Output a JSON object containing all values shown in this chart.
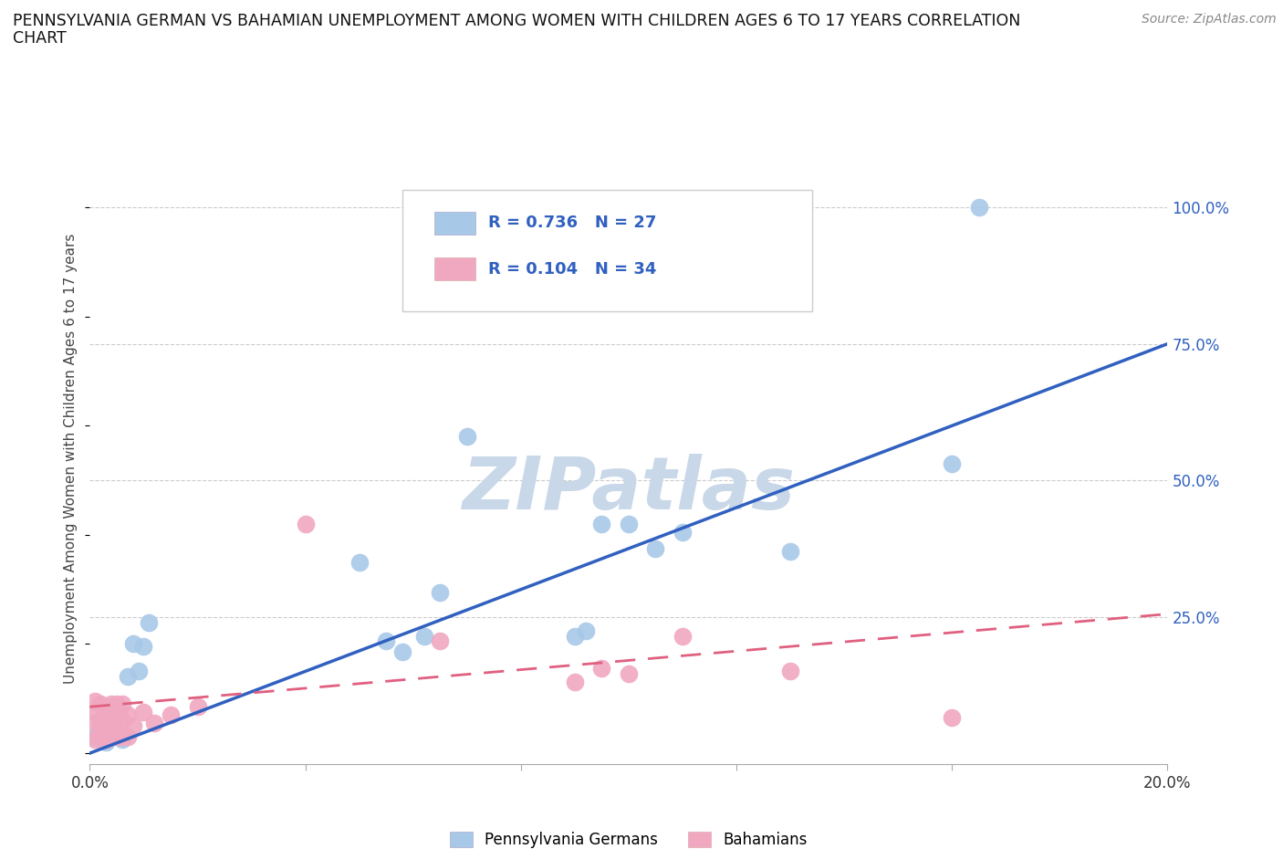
{
  "title_line1": "PENNSYLVANIA GERMAN VS BAHAMIAN UNEMPLOYMENT AMONG WOMEN WITH CHILDREN AGES 6 TO 17 YEARS CORRELATION",
  "title_line2": "CHART",
  "source_text": "Source: ZipAtlas.com",
  "ylabel": "Unemployment Among Women with Children Ages 6 to 17 years",
  "xlim": [
    0,
    0.2
  ],
  "ylim": [
    -0.02,
    1.1
  ],
  "yplot_min": 0.0,
  "yplot_max": 1.05,
  "ytick_positions": [
    0.25,
    0.5,
    0.75,
    1.0
  ],
  "ytick_labels": [
    "25.0%",
    "50.0%",
    "75.0%",
    "100.0%"
  ],
  "xtick_positions": [
    0,
    0.04,
    0.08,
    0.12,
    0.16,
    0.2
  ],
  "xtick_labels": [
    "0.0%",
    "",
    "",
    "",
    "",
    "20.0%"
  ],
  "grid_color": "#cccccc",
  "background_color": "#ffffff",
  "watermark_text": "ZIPatlas",
  "watermark_color": "#c8d8e8",
  "blue_scatter_color": "#a8c8e8",
  "pink_scatter_color": "#f0a8c0",
  "blue_line_color": "#3060c0",
  "pink_line_color": "#e06080",
  "legend_blue_r": "R = 0.736",
  "legend_blue_n": "N = 27",
  "legend_pink_r": "R = 0.104",
  "legend_pink_n": "N = 34",
  "legend_label_blue": "Pennsylvania Germans",
  "legend_label_pink": "Bahamians",
  "blue_trend_x0": 0.0,
  "blue_trend_y0": 0.0,
  "blue_trend_x1": 0.2,
  "blue_trend_y1": 0.75,
  "pink_trend_x0": 0.0,
  "pink_trend_y0": 0.085,
  "pink_trend_x1": 0.2,
  "pink_trend_y1": 0.255,
  "blue_x": [
    0.001,
    0.002,
    0.003,
    0.003,
    0.004,
    0.005,
    0.006,
    0.007,
    0.008,
    0.009,
    0.01,
    0.011,
    0.05,
    0.055,
    0.058,
    0.062,
    0.065,
    0.07,
    0.09,
    0.092,
    0.095,
    0.1,
    0.105,
    0.11,
    0.13,
    0.16,
    0.165
  ],
  "blue_y": [
    0.03,
    0.045,
    0.02,
    0.06,
    0.085,
    0.07,
    0.025,
    0.14,
    0.2,
    0.15,
    0.195,
    0.24,
    0.35,
    0.205,
    0.185,
    0.215,
    0.295,
    0.58,
    0.215,
    0.225,
    0.42,
    0.42,
    0.375,
    0.405,
    0.37,
    0.53,
    1.0
  ],
  "pink_x": [
    0.001,
    0.001,
    0.001,
    0.001,
    0.002,
    0.002,
    0.002,
    0.003,
    0.003,
    0.003,
    0.004,
    0.004,
    0.004,
    0.005,
    0.005,
    0.005,
    0.006,
    0.006,
    0.006,
    0.007,
    0.007,
    0.008,
    0.01,
    0.012,
    0.015,
    0.02,
    0.04,
    0.065,
    0.09,
    0.095,
    0.1,
    0.11,
    0.13,
    0.16
  ],
  "pink_y": [
    0.025,
    0.055,
    0.075,
    0.095,
    0.03,
    0.06,
    0.09,
    0.025,
    0.05,
    0.075,
    0.03,
    0.06,
    0.09,
    0.03,
    0.06,
    0.09,
    0.03,
    0.06,
    0.09,
    0.03,
    0.07,
    0.05,
    0.075,
    0.055,
    0.07,
    0.085,
    0.42,
    0.205,
    0.13,
    0.155,
    0.145,
    0.215,
    0.15,
    0.065
  ]
}
